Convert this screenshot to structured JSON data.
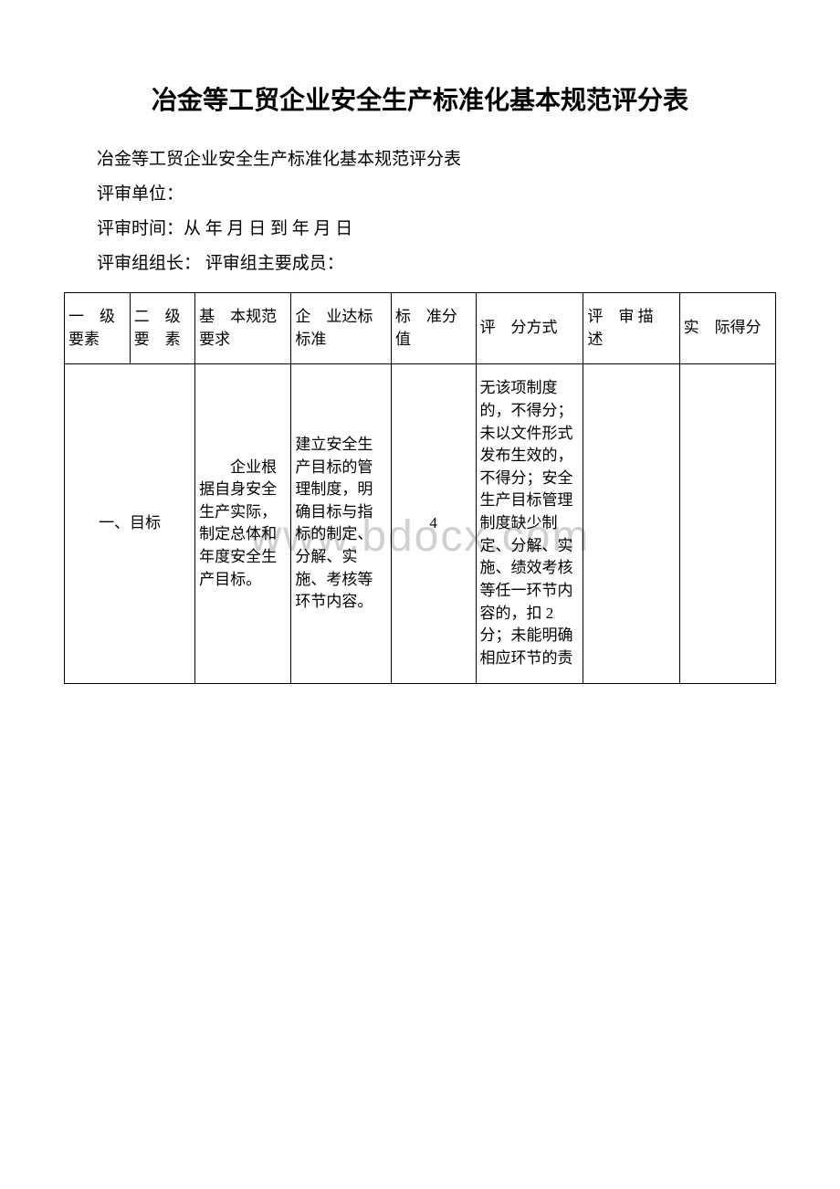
{
  "watermark": "www.bdocx.com",
  "title": "冶金等工贸企业安全生产标准化基本规范评分表",
  "subtitle": "冶金等工贸企业安全生产标准化基本规范评分表",
  "meta": {
    "unit_label": "评审单位：",
    "time_label": "评审时间：从 年 月 日 到 年 月 日",
    "leader_label": "评审组组长：   评审组主要成员："
  },
  "table": {
    "headers": {
      "c1a": "一",
      "c1b": "级要素",
      "c2a": "二",
      "c2b": "级",
      "c2c": "要",
      "c2d": "素",
      "c3a": "基",
      "c3b": "本规范要求",
      "c4a": "企",
      "c4b": "业达标标准",
      "c5a": "标",
      "c5b": "准分值",
      "c6a": "评",
      "c6b": "分方式",
      "c7a": "评",
      "c7b": "审",
      "c7c": "描",
      "c7d": "述",
      "c8a": "实",
      "c8b": "际得分"
    },
    "row1": {
      "c12": "一、目标",
      "c3": "　　企业根据自身安全生产实际，制定总体和年度安全生产目标。",
      "c4": "建立安全生产目标的管理制度，明确目标与指标的制定、分解、实施、考核等环节内容。",
      "c5": "4",
      "c6": "无该项制度的，不得分；未以文件形式发布生效的，不得分；安全生产目标管理制度缺少制定、分解、实施、绩效考核等任一环节内容的，扣 2分；未能明确相应环节的责",
      "c7": "",
      "c8": ""
    }
  }
}
